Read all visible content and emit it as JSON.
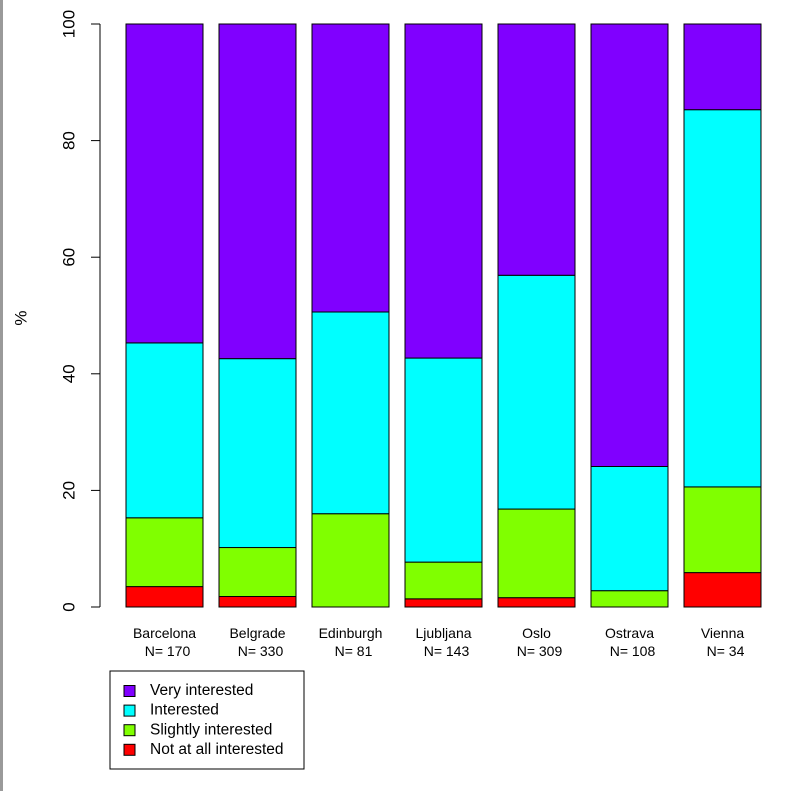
{
  "chart_data": {
    "type": "bar",
    "stacked": true,
    "title": "",
    "xlabel": "",
    "ylabel": "%",
    "ylim": [
      0,
      100
    ],
    "yticks": [
      0,
      20,
      40,
      60,
      80,
      100
    ],
    "categories": [
      "Barcelona",
      "Belgrade",
      "Edinburgh",
      "Ljubljana",
      "Oslo",
      "Ostrava",
      "Vienna"
    ],
    "sample_sizes": [
      "N= 170",
      "N= 330",
      "N= 81",
      "N= 143",
      "N= 309",
      "N= 108",
      "N= 34"
    ],
    "series": [
      {
        "name": "Not at all interested",
        "color": "#ff0000",
        "values": [
          3.5,
          1.8,
          0,
          1.4,
          1.6,
          0,
          5.9
        ]
      },
      {
        "name": "Slightly interested",
        "color": "#80ff00",
        "values": [
          11.8,
          8.4,
          16.0,
          6.3,
          15.2,
          2.8,
          14.7
        ]
      },
      {
        "name": "Interested",
        "color": "#00ffff",
        "values": [
          30.0,
          32.4,
          34.6,
          35.0,
          40.1,
          21.3,
          64.7
        ]
      },
      {
        "name": "Very interested",
        "color": "#8000ff",
        "values": [
          54.7,
          57.4,
          49.4,
          57.3,
          43.1,
          75.9,
          14.7
        ]
      }
    ],
    "legend": {
      "placement": "bottom-left",
      "order": [
        "Very interested",
        "Interested",
        "Slightly interested",
        "Not at all interested"
      ]
    },
    "grid": false
  }
}
